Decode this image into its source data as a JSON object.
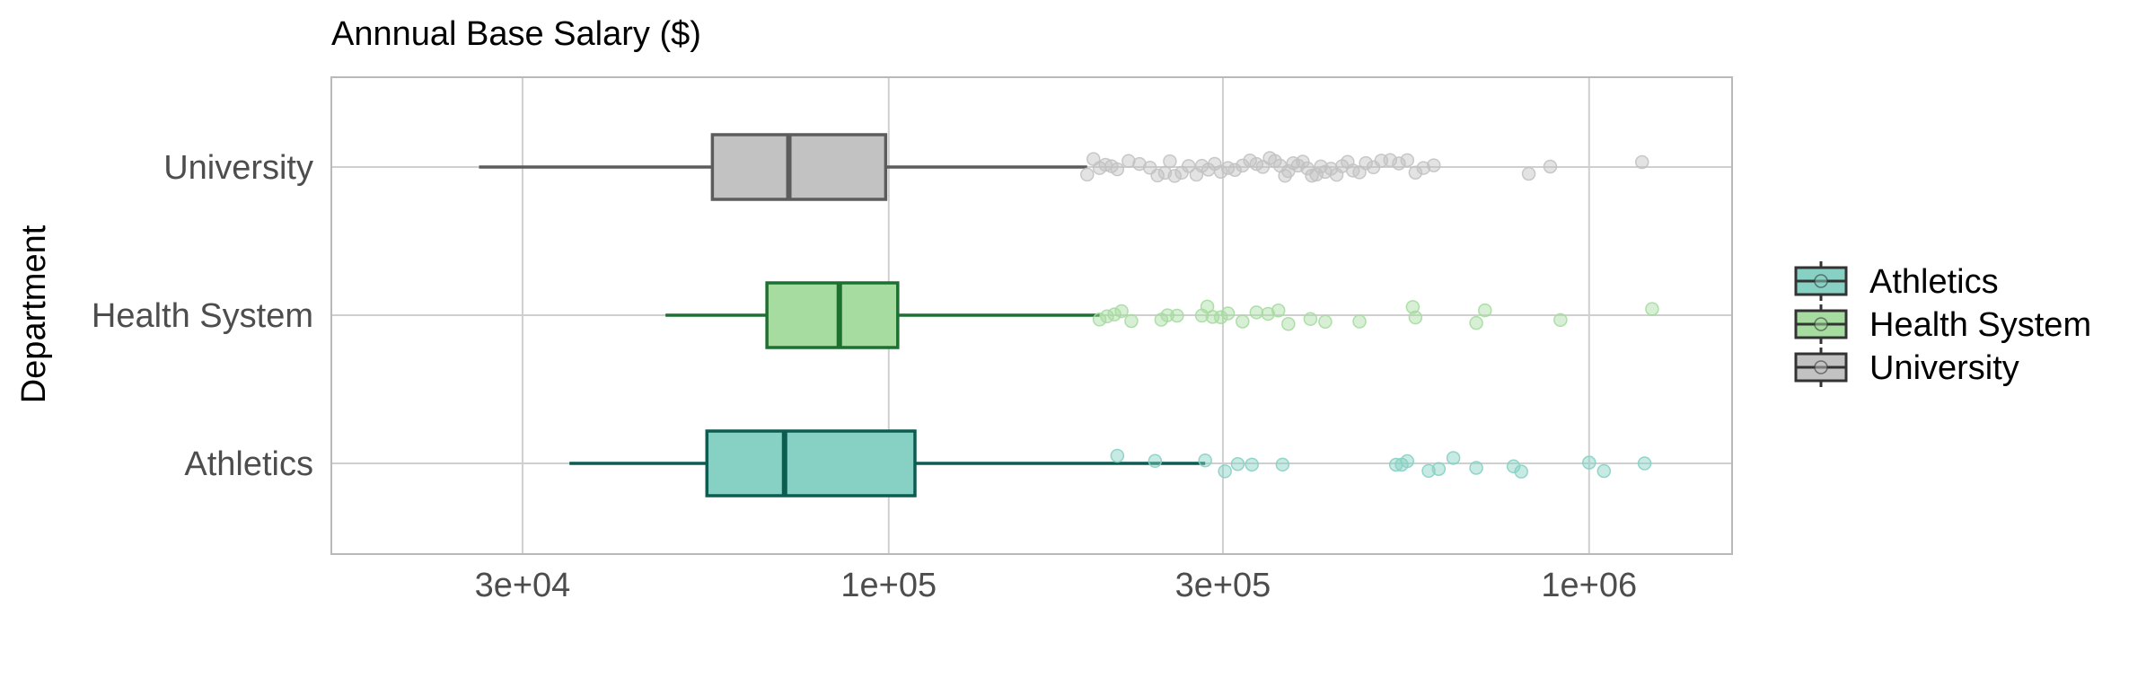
{
  "chart_data": {
    "type": "boxplot",
    "title": "Annnual Base Salary ($)",
    "ylabel": "Department",
    "x_scale": "log10",
    "xlim": [
      16000,
      1600000
    ],
    "x_ticks": [
      30000,
      100000,
      300000,
      1000000
    ],
    "x_tick_labels": [
      "3e+04",
      "1e+05",
      "3e+05",
      "1e+06"
    ],
    "grid": true,
    "legend_position": "right",
    "categories": [
      "University",
      "Health System",
      "Athletics"
    ],
    "legend": [
      "Athletics",
      "Health System",
      "University"
    ],
    "series": [
      {
        "name": "University",
        "fill": "#c2c2c2",
        "stroke": "#5c5c5c",
        "whisker_low": 26000,
        "q1": 56000,
        "median": 72000,
        "q3": 99000,
        "whisker_high": 192000,
        "outliers": [
          192000,
          196000,
          200000,
          204000,
          208000,
          212000,
          220000,
          228000,
          236000,
          242000,
          248000,
          252000,
          256000,
          262000,
          268000,
          275000,
          280000,
          286000,
          292000,
          298000,
          305000,
          312000,
          320000,
          328000,
          335000,
          342000,
          350000,
          356000,
          362000,
          368000,
          372000,
          378000,
          384000,
          390000,
          396000,
          402000,
          408000,
          414000,
          420000,
          428000,
          436000,
          444000,
          452000,
          460000,
          470000,
          480000,
          492000,
          505000,
          520000,
          535000,
          550000,
          565000,
          580000,
          600000,
          820000,
          880000,
          1190000
        ]
      },
      {
        "name": "Health System",
        "fill": "#a6dca0",
        "stroke": "#1d7030",
        "whisker_low": 48000,
        "q1": 67000,
        "median": 85000,
        "q3": 103000,
        "whisker_high": 200000,
        "outliers": [
          200000,
          205000,
          210000,
          215000,
          222000,
          245000,
          250000,
          258000,
          280000,
          285000,
          290000,
          298000,
          305000,
          320000,
          335000,
          348000,
          360000,
          372000,
          400000,
          420000,
          470000,
          560000,
          565000,
          690000,
          710000,
          910000,
          1230000
        ]
      },
      {
        "name": "Athletics",
        "fill": "#86d1c3",
        "stroke": "#0c5c52",
        "whisker_low": 35000,
        "q1": 55000,
        "median": 71000,
        "q3": 109000,
        "whisker_high": 283000,
        "outliers": [
          212000,
          240000,
          283000,
          302000,
          315000,
          330000,
          365000,
          530000,
          540000,
          550000,
          590000,
          610000,
          640000,
          690000,
          780000,
          800000,
          1000000,
          1050000,
          1200000
        ]
      }
    ]
  }
}
